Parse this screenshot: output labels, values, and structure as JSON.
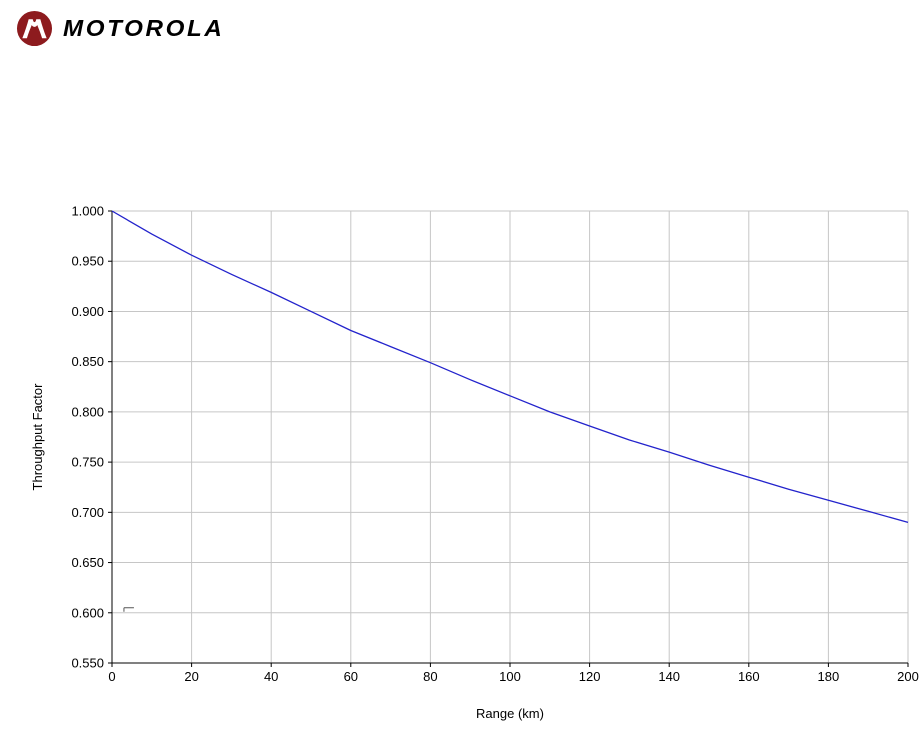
{
  "header": {
    "logo": {
      "wordmark": "MOTOROLA",
      "emblem_color": "#8d1b1e",
      "emblem_glyph": "batwing-m"
    }
  },
  "chart_data": {
    "type": "line",
    "title": "",
    "xlabel": "Range (km)",
    "ylabel": "Throughput Factor",
    "xlim": [
      0,
      200
    ],
    "ylim": [
      0.55,
      1.0
    ],
    "x_ticks": [
      0,
      20,
      40,
      60,
      80,
      100,
      120,
      140,
      160,
      180,
      200
    ],
    "y_ticks": [
      "1.000",
      "0.950",
      "0.900",
      "0.850",
      "0.800",
      "0.750",
      "0.700",
      "0.650",
      "0.600",
      "0.550"
    ],
    "grid": true,
    "grid_color": "#c6c6c6",
    "axis_color": "#000000",
    "legend": "none",
    "x": [
      0,
      10,
      20,
      30,
      40,
      50,
      60,
      70,
      80,
      90,
      100,
      110,
      120,
      130,
      140,
      150,
      160,
      170,
      180,
      190,
      200
    ],
    "series": [
      {
        "name": "Throughput Factor",
        "color": "#2323cc",
        "values": [
          1.0,
          0.977,
          0.956,
          0.937,
          0.919,
          0.9,
          0.881,
          0.865,
          0.849,
          0.832,
          0.816,
          0.8,
          0.786,
          0.772,
          0.76,
          0.747,
          0.735,
          0.723,
          0.712,
          0.701,
          0.69
        ]
      }
    ],
    "annotations": [
      {
        "name": "stray-mark",
        "x": 3,
        "value": 0.605
      }
    ]
  }
}
